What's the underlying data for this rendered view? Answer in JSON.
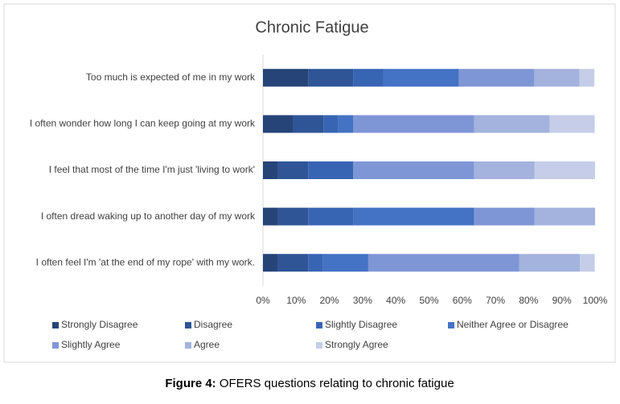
{
  "chart_data": {
    "type": "stacked_barh",
    "title": "Chronic Fatigue",
    "categories": [
      "Too much is expected of me in my work",
      "I often wonder how long I can keep going at my work",
      "I feel that most of the time I'm just 'living to work'",
      "I often dread waking up to another day of my work",
      "I often feel I'm 'at the end of my rope' with my work."
    ],
    "series": [
      {
        "name": "Strongly Disagree",
        "color": "#264478",
        "values": [
          13.6,
          9.1,
          4.5,
          4.5,
          4.5
        ]
      },
      {
        "name": "Disagree",
        "color": "#2f5597",
        "values": [
          13.6,
          9.1,
          9.1,
          9.1,
          9.1
        ]
      },
      {
        "name": "Slightly Disagree",
        "color": "#3864b4",
        "values": [
          9.1,
          4.5,
          13.6,
          13.6,
          4.5
        ]
      },
      {
        "name": "Neither Agree or Disagree",
        "color": "#4472c4",
        "values": [
          22.7,
          4.5,
          0,
          36.4,
          13.6
        ]
      },
      {
        "name": "Slightly Agree",
        "color": "#7f96d6",
        "values": [
          22.7,
          36.4,
          36.4,
          18.2,
          45.5
        ]
      },
      {
        "name": "Agree",
        "color": "#a3b3dd",
        "values": [
          13.6,
          22.7,
          18.2,
          18.2,
          18.2
        ]
      },
      {
        "name": "Strongly Agree",
        "color": "#c6cde8",
        "values": [
          4.5,
          13.6,
          18.2,
          0,
          4.5
        ]
      }
    ],
    "xlim": [
      0,
      100
    ],
    "xticks": [
      {
        "value": 0,
        "label": "0%"
      },
      {
        "value": 10,
        "label": "10%"
      },
      {
        "value": 20,
        "label": "20%"
      },
      {
        "value": 30,
        "label": "30%"
      },
      {
        "value": 40,
        "label": "40%"
      },
      {
        "value": 50,
        "label": "50%"
      },
      {
        "value": 60,
        "label": "60%"
      },
      {
        "value": 70,
        "label": "70%"
      },
      {
        "value": 80,
        "label": "80%"
      },
      {
        "value": 90,
        "label": "90%"
      },
      {
        "value": 100,
        "label": "100%"
      }
    ]
  },
  "caption": {
    "label": "Figure 4:",
    "text": "OFERS questions relating to chronic fatigue"
  }
}
